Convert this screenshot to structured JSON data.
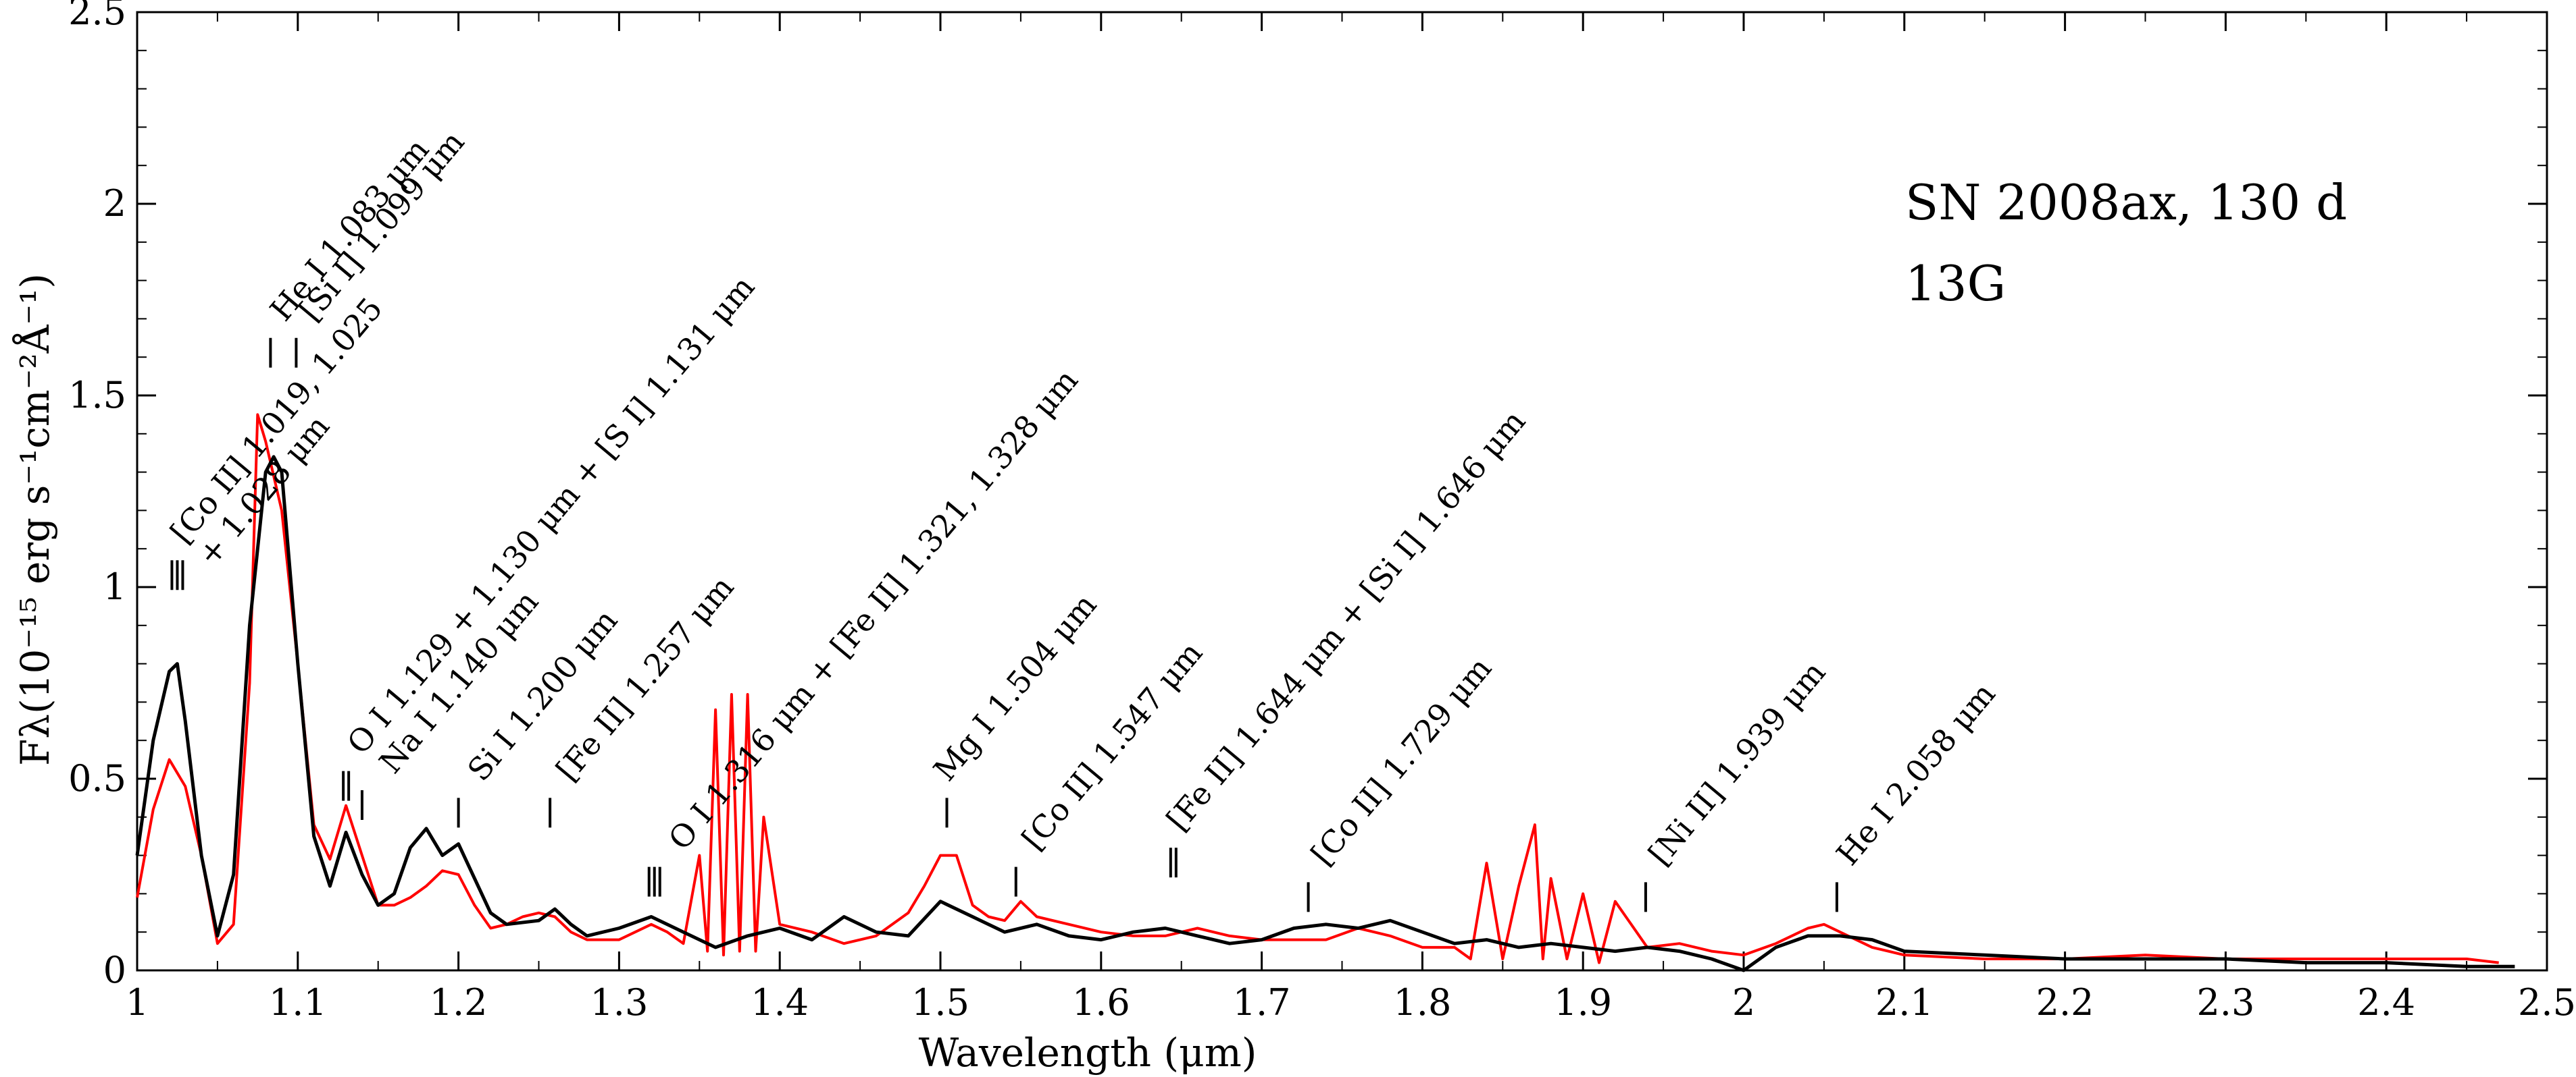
{
  "chart_data": {
    "type": "line",
    "title": "",
    "xlabel": "Wavelength (μm)",
    "ylabel": "Fλ(10⁻¹⁵ erg s⁻¹cm⁻²Å⁻¹)",
    "xlim": [
      1.0,
      2.5
    ],
    "ylim": [
      0,
      2.5
    ],
    "x_ticks": [
      1,
      1.1,
      1.2,
      1.3,
      1.4,
      1.5,
      1.6,
      1.7,
      1.8,
      1.9,
      2,
      2.1,
      2.2,
      2.3,
      2.4,
      2.5
    ],
    "x_tick_labels": [
      "1",
      "1.1",
      "1.2",
      "1.3",
      "1.4",
      "1.5",
      "1.6",
      "1.7",
      "1.8",
      "1.9",
      "2",
      "2.1",
      "2.2",
      "2.3",
      "2.4",
      "2.5"
    ],
    "y_ticks": [
      0,
      0.5,
      1,
      1.5,
      2,
      2.5
    ],
    "y_tick_labels": [
      "0",
      "0.5",
      "1",
      "1.5",
      "2",
      "2.5"
    ],
    "grid": false,
    "legend_position": "top-right",
    "series": [
      {
        "name": "SN 2008ax, 130 d",
        "color": "#ff0000",
        "x": [
          1.0,
          1.01,
          1.02,
          1.03,
          1.04,
          1.05,
          1.06,
          1.07,
          1.075,
          1.08,
          1.09,
          1.1,
          1.11,
          1.12,
          1.13,
          1.14,
          1.15,
          1.16,
          1.17,
          1.18,
          1.19,
          1.2,
          1.21,
          1.22,
          1.23,
          1.24,
          1.25,
          1.26,
          1.27,
          1.28,
          1.29,
          1.3,
          1.31,
          1.32,
          1.33,
          1.34,
          1.35,
          1.355,
          1.36,
          1.365,
          1.37,
          1.375,
          1.38,
          1.385,
          1.39,
          1.4,
          1.42,
          1.44,
          1.46,
          1.48,
          1.49,
          1.5,
          1.51,
          1.52,
          1.53,
          1.54,
          1.55,
          1.56,
          1.58,
          1.6,
          1.62,
          1.64,
          1.66,
          1.68,
          1.7,
          1.72,
          1.74,
          1.76,
          1.78,
          1.8,
          1.82,
          1.83,
          1.84,
          1.85,
          1.86,
          1.87,
          1.875,
          1.88,
          1.89,
          1.9,
          1.91,
          1.92,
          1.94,
          1.96,
          1.98,
          2.0,
          2.02,
          2.04,
          2.05,
          2.06,
          2.08,
          2.1,
          2.15,
          2.2,
          2.25,
          2.3,
          2.35,
          2.4,
          2.45,
          2.47
        ],
        "y": [
          0.19,
          0.42,
          0.55,
          0.48,
          0.3,
          0.07,
          0.12,
          0.75,
          1.45,
          1.38,
          1.2,
          0.8,
          0.38,
          0.29,
          0.43,
          0.3,
          0.17,
          0.17,
          0.19,
          0.22,
          0.26,
          0.25,
          0.17,
          0.11,
          0.12,
          0.14,
          0.15,
          0.14,
          0.1,
          0.08,
          0.08,
          0.08,
          0.1,
          0.12,
          0.1,
          0.07,
          0.3,
          0.05,
          0.68,
          0.04,
          0.72,
          0.05,
          0.72,
          0.05,
          0.4,
          0.12,
          0.1,
          0.07,
          0.09,
          0.15,
          0.22,
          0.3,
          0.3,
          0.17,
          0.14,
          0.13,
          0.18,
          0.14,
          0.12,
          0.1,
          0.09,
          0.09,
          0.11,
          0.09,
          0.08,
          0.08,
          0.08,
          0.11,
          0.09,
          0.06,
          0.06,
          0.03,
          0.28,
          0.03,
          0.22,
          0.38,
          0.03,
          0.24,
          0.03,
          0.2,
          0.02,
          0.18,
          0.06,
          0.07,
          0.05,
          0.04,
          0.07,
          0.11,
          0.12,
          0.1,
          0.06,
          0.04,
          0.03,
          0.03,
          0.04,
          0.03,
          0.03,
          0.03,
          0.03,
          0.02
        ]
      },
      {
        "name": "13G",
        "color": "#000000",
        "x": [
          1.0,
          1.01,
          1.02,
          1.025,
          1.03,
          1.04,
          1.05,
          1.06,
          1.07,
          1.08,
          1.085,
          1.09,
          1.1,
          1.11,
          1.12,
          1.13,
          1.14,
          1.15,
          1.16,
          1.17,
          1.18,
          1.19,
          1.2,
          1.21,
          1.22,
          1.23,
          1.25,
          1.26,
          1.27,
          1.28,
          1.3,
          1.32,
          1.34,
          1.36,
          1.38,
          1.4,
          1.42,
          1.44,
          1.46,
          1.48,
          1.5,
          1.52,
          1.54,
          1.56,
          1.58,
          1.6,
          1.62,
          1.64,
          1.66,
          1.68,
          1.7,
          1.72,
          1.74,
          1.76,
          1.78,
          1.8,
          1.82,
          1.84,
          1.86,
          1.88,
          1.9,
          1.92,
          1.94,
          1.96,
          1.98,
          2.0,
          2.02,
          2.04,
          2.06,
          2.08,
          2.1,
          2.15,
          2.2,
          2.25,
          2.3,
          2.35,
          2.4,
          2.45,
          2.48
        ],
        "y": [
          0.3,
          0.6,
          0.78,
          0.8,
          0.65,
          0.3,
          0.09,
          0.25,
          0.9,
          1.3,
          1.34,
          1.3,
          0.8,
          0.35,
          0.22,
          0.36,
          0.25,
          0.17,
          0.2,
          0.32,
          0.37,
          0.3,
          0.33,
          0.24,
          0.15,
          0.12,
          0.13,
          0.16,
          0.12,
          0.09,
          0.11,
          0.14,
          0.1,
          0.06,
          0.09,
          0.11,
          0.08,
          0.14,
          0.1,
          0.09,
          0.18,
          0.14,
          0.1,
          0.12,
          0.09,
          0.08,
          0.1,
          0.11,
          0.09,
          0.07,
          0.08,
          0.11,
          0.12,
          0.11,
          0.13,
          0.1,
          0.07,
          0.08,
          0.06,
          0.07,
          0.06,
          0.05,
          0.06,
          0.05,
          0.03,
          0.0,
          0.06,
          0.09,
          0.09,
          0.08,
          0.05,
          0.04,
          0.03,
          0.03,
          0.03,
          0.02,
          0.02,
          0.01,
          0.01
        ]
      }
    ],
    "line_ids": [
      {
        "label": "[Co II] 1.019, 1.025",
        "label2": "+ 1.028 μm",
        "x": 1.025,
        "mark_y": 1.07,
        "marks": 3,
        "label_x": 1.025
      },
      {
        "label": "He I 1.083 μm",
        "x": 1.083,
        "mark_y": 1.65,
        "marks": 1,
        "label_x": 1.087
      },
      {
        "label": "[Si I] 1.099 μm",
        "x": 1.099,
        "mark_y": 1.65,
        "marks": 1,
        "label_x": 1.105
      },
      {
        "label": "O I 1.129 + 1.130 μm + [S I] 1.131 μm",
        "x": 1.13,
        "mark_y": 0.52,
        "marks": 2,
        "label_x": 1.135
      },
      {
        "label": "Na I 1.140 μm",
        "x": 1.14,
        "mark_y": 0.47,
        "marks": 1,
        "label_x": 1.155
      },
      {
        "label": "Si I 1.200 μm",
        "x": 1.2,
        "mark_y": 0.45,
        "marks": 1,
        "label_x": 1.21
      },
      {
        "label": "[Fe II] 1.257 μm",
        "x": 1.257,
        "mark_y": 0.45,
        "marks": 1,
        "label_x": 1.265
      },
      {
        "label": "O I 1.316 μm + [Fe II] 1.321, 1.328 μm",
        "x": 1.322,
        "mark_y": 0.27,
        "marks": 3,
        "label_x": 1.335
      },
      {
        "label": "Mg I 1.504 μm",
        "x": 1.504,
        "mark_y": 0.45,
        "marks": 1,
        "label_x": 1.5
      },
      {
        "label": "[Co II] 1.547 μm",
        "x": 1.547,
        "mark_y": 0.27,
        "marks": 1,
        "label_x": 1.555
      },
      {
        "label": "[Fe II] 1.644 μm + [Si I] 1.646 μm",
        "x": 1.645,
        "mark_y": 0.32,
        "marks": 2,
        "label_x": 1.645
      },
      {
        "label": "[Co II] 1.729 μm",
        "x": 1.729,
        "mark_y": 0.23,
        "marks": 1,
        "label_x": 1.735
      },
      {
        "label": "[Ni II] 1.939 μm",
        "x": 1.939,
        "mark_y": 0.23,
        "marks": 1,
        "label_x": 1.945
      },
      {
        "label": "He I 2.058 μm",
        "x": 2.058,
        "mark_y": 0.23,
        "marks": 1,
        "label_x": 2.062
      }
    ]
  }
}
